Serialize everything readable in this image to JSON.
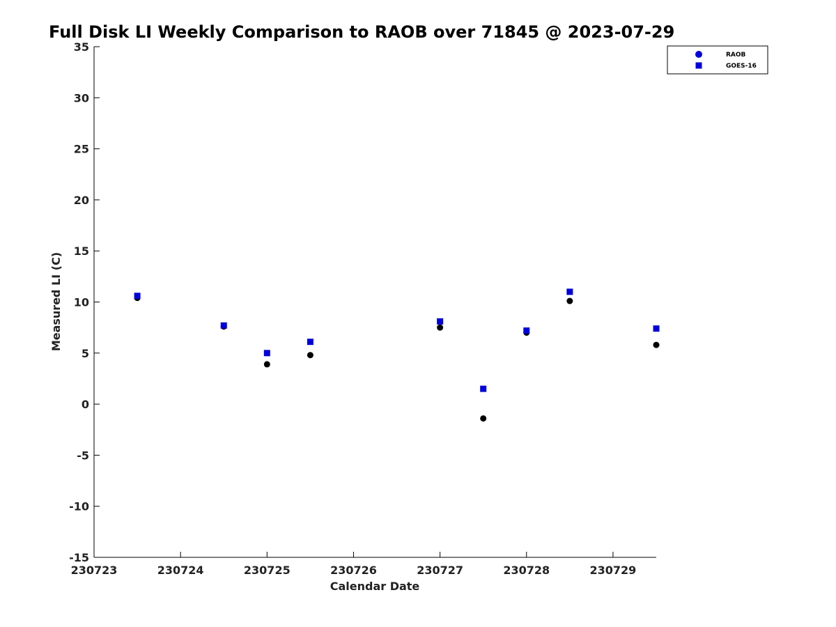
{
  "chart_data": {
    "type": "scatter",
    "title": "Full Disk LI Weekly Comparison to RAOB over 71845 @ 2023-07-29",
    "xlabel": "Calendar Date",
    "ylabel": "Measured LI (C)",
    "xlim": [
      0,
      6.5
    ],
    "ylim": [
      -15,
      35
    ],
    "x_ticks": [
      {
        "value": 0,
        "label": "230723"
      },
      {
        "value": 1,
        "label": "230724"
      },
      {
        "value": 2,
        "label": "230725"
      },
      {
        "value": 3,
        "label": "230726"
      },
      {
        "value": 4,
        "label": "230727"
      },
      {
        "value": 5,
        "label": "230728"
      },
      {
        "value": 6,
        "label": "230729"
      }
    ],
    "y_ticks": [
      35,
      30,
      25,
      20,
      15,
      10,
      5,
      0,
      -5,
      -10,
      -15
    ],
    "legend_position": "top-right",
    "series": [
      {
        "name": "RAOB",
        "marker": "circle",
        "marker_color": "#000000",
        "legend_color": "#0000dd",
        "x": [
          0.5,
          1.5,
          2.0,
          2.5,
          4.0,
          4.5,
          5.0,
          5.5,
          6.5
        ],
        "y": [
          10.4,
          7.6,
          3.9,
          4.8,
          7.5,
          -1.4,
          7.0,
          10.1,
          5.8
        ]
      },
      {
        "name": "GOES-16",
        "marker": "square",
        "marker_color": "#0000dd",
        "legend_color": "#0000dd",
        "x": [
          0.5,
          1.5,
          2.0,
          2.5,
          4.0,
          4.5,
          5.0,
          5.5,
          6.5
        ],
        "y": [
          10.6,
          7.7,
          5.0,
          6.1,
          8.1,
          1.5,
          7.2,
          11.0,
          7.4
        ]
      }
    ]
  }
}
